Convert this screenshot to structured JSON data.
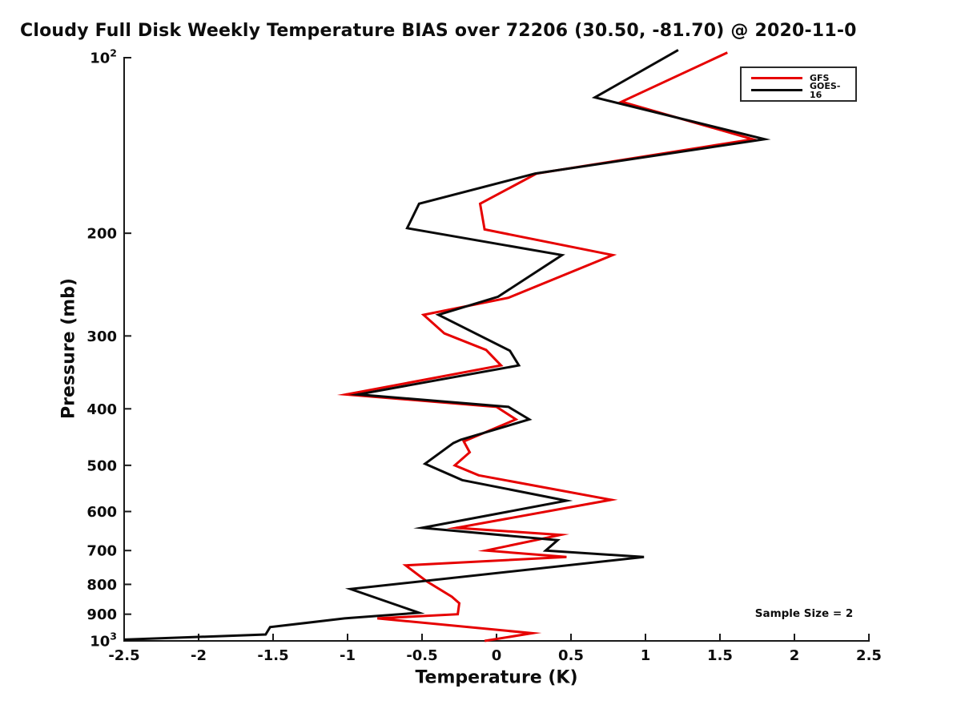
{
  "title": "Cloudy Full Disk Weekly Temperature BIAS over 72206 (30.50, -81.70) @ 2020-11-0",
  "chart_data": {
    "type": "line",
    "title": "Cloudy Full Disk Weekly Temperature BIAS over 72206 (30.50, -81.70) @ 2020-11-0",
    "xlabel": "Temperature (K)",
    "ylabel": "Pressure (mb)",
    "annotation": "Sample Size = 2",
    "xlim": [
      -2.5,
      2.5
    ],
    "ylim": [
      100,
      1000
    ],
    "yscale": "log",
    "y_inverted": true,
    "grid": false,
    "legend_position": "upper right",
    "x_ticks": [
      -2.5,
      -2,
      -1.5,
      -1,
      -0.5,
      0,
      0.5,
      1,
      1.5,
      2,
      2.5
    ],
    "x_tick_labels": [
      "-2.5",
      "-2",
      "-1.5",
      "-1",
      "-0.5",
      "0",
      "0.5",
      "1",
      "1.5",
      "2",
      "2.5"
    ],
    "y_ticks": [
      {
        "value": 100,
        "label": "10",
        "sup": "2"
      },
      {
        "value": 200,
        "label": "200"
      },
      {
        "value": 300,
        "label": "300"
      },
      {
        "value": 400,
        "label": "400"
      },
      {
        "value": 500,
        "label": "500"
      },
      {
        "value": 600,
        "label": "600"
      },
      {
        "value": 700,
        "label": "700"
      },
      {
        "value": 800,
        "label": "800"
      },
      {
        "value": 900,
        "label": "900"
      },
      {
        "value": 1000,
        "label": "10",
        "sup": "3"
      }
    ],
    "series": [
      {
        "name": "GFS",
        "color": "#e60000",
        "points_format": [
          "temperature_K",
          "pressure_mb"
        ],
        "points": [
          [
            1.55,
            98
          ],
          [
            0.84,
            119
          ],
          [
            1.72,
            138
          ],
          [
            0.27,
            158
          ],
          [
            -0.11,
            178
          ],
          [
            -0.08,
            197
          ],
          [
            0.78,
            218
          ],
          [
            0.08,
            258
          ],
          [
            -0.49,
            276
          ],
          [
            -0.35,
            297
          ],
          [
            -0.07,
            317
          ],
          [
            0.03,
            337
          ],
          [
            -1.01,
            378
          ],
          [
            0.0,
            397
          ],
          [
            0.13,
            417
          ],
          [
            -0.22,
            455
          ],
          [
            -0.18,
            475
          ],
          [
            -0.28,
            500
          ],
          [
            -0.12,
            520
          ],
          [
            0.77,
            573
          ],
          [
            -0.27,
            640
          ],
          [
            0.43,
            658
          ],
          [
            -0.07,
            700
          ],
          [
            0.47,
            718
          ],
          [
            -0.61,
            742
          ],
          [
            -0.47,
            790
          ],
          [
            -0.3,
            840
          ],
          [
            -0.25,
            862
          ],
          [
            -0.26,
            900
          ],
          [
            -0.8,
            915
          ],
          [
            0.24,
            970
          ],
          [
            -0.08,
            1000
          ]
        ]
      },
      {
        "name": "GOES-16",
        "color": "#0a0a0a",
        "points_format": [
          "temperature_K",
          "pressure_mb"
        ],
        "points": [
          [
            1.22,
            97
          ],
          [
            0.66,
            117
          ],
          [
            1.8,
            138
          ],
          [
            0.26,
            158
          ],
          [
            -0.52,
            178
          ],
          [
            -0.6,
            196
          ],
          [
            0.44,
            218
          ],
          [
            0.01,
            257
          ],
          [
            -0.39,
            276
          ],
          [
            0.09,
            318
          ],
          [
            0.15,
            337
          ],
          [
            -0.93,
            378
          ],
          [
            0.08,
            397
          ],
          [
            0.22,
            417
          ],
          [
            -0.24,
            452
          ],
          [
            -0.29,
            458
          ],
          [
            -0.48,
            497
          ],
          [
            -0.23,
            530
          ],
          [
            0.47,
            575
          ],
          [
            -0.5,
            640
          ],
          [
            0.41,
            672
          ],
          [
            0.33,
            700
          ],
          [
            0.99,
            718
          ],
          [
            -0.98,
            815
          ],
          [
            -0.52,
            895
          ],
          [
            -1.02,
            915
          ],
          [
            -1.52,
            947
          ],
          [
            -1.55,
            975
          ],
          [
            -2.5,
            995
          ]
        ]
      }
    ]
  }
}
